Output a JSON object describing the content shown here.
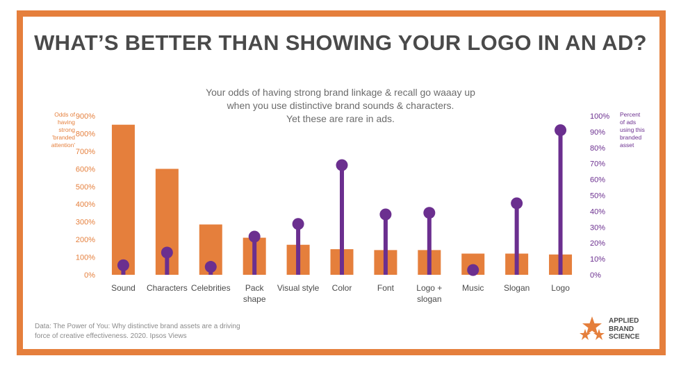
{
  "title": "WHAT’S BETTER THAN SHOWING YOUR LOGO IN AN AD?",
  "subtitle": [
    "Your odds of having strong brand linkage & recall go waaay up",
    "when you use distinctive brand sounds & characters.",
    "Yet these are rare in ads."
  ],
  "source": "Data: The Power of You: Why distinctive brand assets are a driving force of creative effectiveness. 2020. Ipsos Views",
  "logo": {
    "lines": [
      "APPLIED",
      "BRAND",
      "SCIENCE"
    ]
  },
  "colors": {
    "frame": "#e57f3c",
    "bars": "#e57f3c",
    "lollipops": "#6b2f8f",
    "title": "#4a4a4a"
  },
  "chart_data": {
    "type": "bar",
    "categories": [
      "Sound",
      "Characters",
      "Celebrities",
      "Pack shape",
      "Visual style",
      "Color",
      "Font",
      "Logo + slogan",
      "Music",
      "Slogan",
      "Logo"
    ],
    "category_lines": [
      [
        "Sound"
      ],
      [
        "Characters"
      ],
      [
        "Celebrities"
      ],
      [
        "Pack",
        "shape"
      ],
      [
        "Visual style"
      ],
      [
        "Color"
      ],
      [
        "Font"
      ],
      [
        "Logo +",
        "slogan"
      ],
      [
        "Music"
      ],
      [
        "Slogan"
      ],
      [
        "Logo"
      ]
    ],
    "series": [
      {
        "name": "Odds of having strong 'branded attention'",
        "axis": "left",
        "mark": "bar",
        "values": [
          850,
          600,
          285,
          210,
          170,
          145,
          140,
          140,
          120,
          120,
          115
        ]
      },
      {
        "name": "Percent of ads using this branded asset",
        "axis": "right",
        "mark": "lollipop",
        "values": [
          6,
          14,
          5,
          24,
          32,
          69,
          38,
          39,
          3,
          45,
          91
        ]
      }
    ],
    "ylabel_left": [
      "Odds of",
      "having",
      "strong",
      "'branded",
      "attention'"
    ],
    "ylabel_right": [
      "Percent",
      "of ads",
      "using this",
      "branded",
      "asset"
    ],
    "ylim_left": [
      0,
      900
    ],
    "ylim_right": [
      0,
      100
    ],
    "yticks_left": [
      "0%",
      "100%",
      "200%",
      "300%",
      "400%",
      "500%",
      "600%",
      "700%",
      "800%",
      "900%"
    ],
    "yticks_right": [
      "0%",
      "10%",
      "20%",
      "30%",
      "40%",
      "50%",
      "60%",
      "70%",
      "80%",
      "90%",
      "100%"
    ],
    "grid": false
  }
}
